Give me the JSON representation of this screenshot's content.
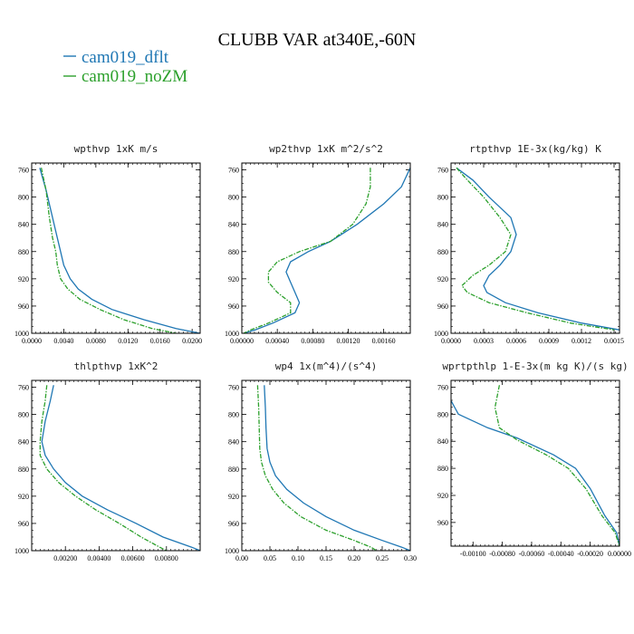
{
  "figure": {
    "title": "CLUBB VAR at340E,-60N",
    "legend": [
      {
        "label": "cam019_dflt",
        "color": "#1f77b4",
        "dash": "solid"
      },
      {
        "label": "cam019_noZM",
        "color": "#2ca02c",
        "dash": "dashdot"
      }
    ]
  },
  "chart_data": [
    {
      "type": "line",
      "title": "wpthvp  1xK m/s",
      "xlim": [
        0,
        0.021
      ],
      "ylim": [
        1000,
        750
      ],
      "yinverted": true,
      "xticks": [
        "0.0000",
        "0.0040",
        "0.0080",
        "0.0120",
        "0.0160",
        "0.0200"
      ],
      "xtick_values": [
        0,
        0.004,
        0.008,
        0.012,
        0.016,
        0.02
      ],
      "yticks": [
        "760",
        "800",
        "840",
        "880",
        "920",
        "960",
        "1000"
      ],
      "ytick_values": [
        760,
        800,
        840,
        880,
        920,
        960,
        1000
      ],
      "series": [
        {
          "name": "cam019_dflt",
          "x": [
            0.001,
            0.0018,
            0.0026,
            0.0032,
            0.0036,
            0.004,
            0.0048,
            0.0058,
            0.0075,
            0.01,
            0.014,
            0.018,
            0.021
          ],
          "y": [
            757,
            790,
            830,
            860,
            880,
            900,
            920,
            935,
            950,
            965,
            980,
            993,
            1000
          ]
        },
        {
          "name": "cam019_noZM",
          "x": [
            0.0012,
            0.0018,
            0.0022,
            0.0026,
            0.003,
            0.0032,
            0.0036,
            0.0045,
            0.006,
            0.0085,
            0.0115,
            0.015,
            0.018
          ],
          "y": [
            757,
            790,
            830,
            860,
            880,
            900,
            920,
            935,
            950,
            965,
            980,
            993,
            1000
          ]
        }
      ]
    },
    {
      "type": "line",
      "title": "wp2thvp  1xK m^2/s^2",
      "xlim": [
        0,
        0.0019
      ],
      "ylim": [
        1000,
        750
      ],
      "yinverted": true,
      "xticks": [
        "0.00000",
        "0.00040",
        "0.00080",
        "0.00120",
        "0.00160"
      ],
      "xtick_values": [
        0,
        0.0004,
        0.0008,
        0.0012,
        0.0016
      ],
      "yticks": [
        "760",
        "800",
        "840",
        "880",
        "920",
        "960",
        "1000"
      ],
      "ytick_values": [
        760,
        800,
        840,
        880,
        920,
        960,
        1000
      ],
      "series": [
        {
          "name": "cam019_dflt",
          "x": [
            0.0019,
            0.0018,
            0.0016,
            0.0013,
            0.001,
            0.00075,
            0.00055,
            0.0005,
            0.00055,
            0.0006,
            0.00065,
            0.0006,
            0.00035,
            0.00015,
            2e-05
          ],
          "y": [
            757,
            785,
            810,
            840,
            865,
            880,
            895,
            910,
            925,
            940,
            955,
            970,
            985,
            995,
            1000
          ]
        },
        {
          "name": "cam019_noZM",
          "x": [
            0.00145,
            0.00145,
            0.0014,
            0.00125,
            0.001,
            0.00065,
            0.0004,
            0.0003,
            0.0003,
            0.0004,
            0.00055,
            0.00055,
            0.0003,
            0.0001,
            2e-05
          ],
          "y": [
            757,
            785,
            810,
            840,
            865,
            880,
            895,
            910,
            925,
            940,
            955,
            970,
            985,
            995,
            1000
          ]
        }
      ]
    },
    {
      "type": "line",
      "title": "rtpthvp  1E-3x(kg/kg) K",
      "xlim": [
        0,
        0.00155
      ],
      "ylim": [
        1000,
        750
      ],
      "yinverted": true,
      "xticks": [
        "0.0000",
        "0.0003",
        "0.0006",
        "0.0009",
        "0.0012",
        "0.0015"
      ],
      "xtick_values": [
        0,
        0.0003,
        0.0006,
        0.0009,
        0.0012,
        0.0015
      ],
      "yticks": [
        "760",
        "800",
        "840",
        "880",
        "920",
        "960",
        "1000"
      ],
      "ytick_values": [
        760,
        800,
        840,
        880,
        920,
        960,
        1000
      ],
      "series": [
        {
          "name": "cam019_dflt",
          "x": [
            5e-05,
            0.0002,
            0.00035,
            0.00055,
            0.0006,
            0.00055,
            0.00045,
            0.00035,
            0.0003,
            0.00033,
            0.0005,
            0.0008,
            0.0012,
            0.00155
          ],
          "y": [
            757,
            775,
            800,
            830,
            855,
            880,
            900,
            915,
            930,
            940,
            955,
            970,
            985,
            995
          ]
        },
        {
          "name": "cam019_noZM",
          "x": [
            5e-05,
            0.00015,
            0.0003,
            0.00045,
            0.00055,
            0.0005,
            0.00035,
            0.0002,
            0.0001,
            0.00015,
            0.00035,
            0.0007,
            0.0011,
            0.0015
          ],
          "y": [
            757,
            775,
            800,
            830,
            855,
            880,
            900,
            915,
            930,
            940,
            955,
            970,
            985,
            995
          ]
        }
      ]
    },
    {
      "type": "line",
      "title": "thlpthvp  1xK^2",
      "xlim": [
        0,
        0.01
      ],
      "ylim": [
        1000,
        750
      ],
      "yinverted": true,
      "xticks": [
        "0.00200",
        "0.00400",
        "0.00600",
        "0.00800"
      ],
      "xtick_values": [
        0.002,
        0.004,
        0.006,
        0.008
      ],
      "yticks": [
        "760",
        "800",
        "840",
        "880",
        "920",
        "960",
        "1000"
      ],
      "ytick_values": [
        760,
        800,
        840,
        880,
        920,
        960,
        1000
      ],
      "series": [
        {
          "name": "cam019_dflt",
          "x": [
            0.0013,
            0.0011,
            0.0008,
            0.0006,
            0.0008,
            0.0013,
            0.002,
            0.003,
            0.0045,
            0.0062,
            0.0078,
            0.0095,
            0.01
          ],
          "y": [
            757,
            780,
            810,
            840,
            860,
            880,
            900,
            920,
            940,
            960,
            980,
            995,
            1000
          ]
        },
        {
          "name": "cam019_noZM",
          "x": [
            0.0009,
            0.0008,
            0.0006,
            0.0005,
            0.0005,
            0.0009,
            0.0016,
            0.0026,
            0.0038,
            0.0052,
            0.0065,
            0.0076,
            0.008
          ],
          "y": [
            757,
            780,
            810,
            840,
            860,
            880,
            900,
            920,
            940,
            960,
            980,
            995,
            1000
          ]
        }
      ]
    },
    {
      "type": "line",
      "title": "wp4  1x(m^4)/(s^4)",
      "xlim": [
        0,
        0.3
      ],
      "ylim": [
        1000,
        750
      ],
      "yinverted": true,
      "xticks": [
        "0.00",
        "0.05",
        "0.10",
        "0.15",
        "0.20",
        "0.25",
        "0.30"
      ],
      "xtick_values": [
        0,
        0.05,
        0.1,
        0.15,
        0.2,
        0.25,
        0.3
      ],
      "yticks": [
        "760",
        "800",
        "840",
        "880",
        "920",
        "960",
        "1000"
      ],
      "ytick_values": [
        760,
        800,
        840,
        880,
        920,
        960,
        1000
      ],
      "series": [
        {
          "name": "cam019_dflt",
          "x": [
            0.04,
            0.042,
            0.043,
            0.045,
            0.05,
            0.06,
            0.08,
            0.11,
            0.15,
            0.2,
            0.25,
            0.285,
            0.3
          ],
          "y": [
            757,
            790,
            820,
            850,
            870,
            890,
            910,
            930,
            950,
            970,
            985,
            995,
            1000
          ]
        },
        {
          "name": "cam019_noZM",
          "x": [
            0.028,
            0.03,
            0.031,
            0.032,
            0.035,
            0.042,
            0.055,
            0.075,
            0.105,
            0.15,
            0.2,
            0.23,
            0.24
          ],
          "y": [
            757,
            790,
            820,
            850,
            870,
            890,
            910,
            930,
            950,
            970,
            985,
            995,
            1000
          ]
        }
      ]
    },
    {
      "type": "line",
      "title": "wprtpthlp  1-E-3x(m kg K)/(s kg)",
      "xlim": [
        -0.00115,
        0.0
      ],
      "ylim": [
        995,
        750
      ],
      "yinverted": true,
      "xticks": [
        "-0.00100",
        "-0.00080",
        "-0.00060",
        "-0.00040",
        "-0.00020",
        "0.00000"
      ],
      "xtick_values": [
        -0.001,
        -0.0008,
        -0.0006,
        -0.0004,
        -0.0002,
        0.0
      ],
      "yticks": [
        "760",
        "800",
        "840",
        "880",
        "920",
        "960"
      ],
      "ytick_values": [
        760,
        800,
        840,
        880,
        920,
        960
      ],
      "series": [
        {
          "name": "cam019_dflt",
          "x": [
            -0.00115,
            -0.0011,
            -0.0009,
            -0.0007,
            -0.00045,
            -0.0003,
            -0.0002,
            -0.0001,
            -2e-05,
            0.0
          ],
          "y": [
            780,
            800,
            820,
            835,
            860,
            880,
            910,
            950,
            975,
            995
          ]
        },
        {
          "name": "cam019_noZM",
          "x": [
            -0.00082,
            -0.00085,
            -0.00082,
            -0.0007,
            -0.0005,
            -0.00035,
            -0.00023,
            -0.00012,
            -3e-05,
            0.0
          ],
          "y": [
            757,
            790,
            820,
            838,
            860,
            880,
            910,
            950,
            975,
            995
          ]
        }
      ]
    }
  ]
}
